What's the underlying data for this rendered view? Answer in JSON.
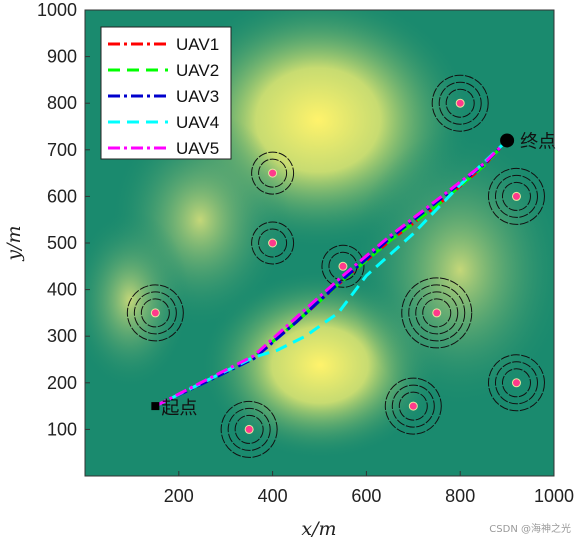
{
  "chart_data": {
    "type": "line",
    "xlabel": "x/m",
    "ylabel": "y/m",
    "xlim": [
      0,
      1000
    ],
    "ylim": [
      0,
      1000
    ],
    "x_ticks": [
      200,
      400,
      600,
      800,
      1000
    ],
    "y_ticks": [
      100,
      200,
      300,
      400,
      500,
      600,
      700,
      800,
      900,
      1000
    ],
    "legend_position": "top-left",
    "start": {
      "label": "起点",
      "x": 150,
      "y": 150
    },
    "end": {
      "label": "终点",
      "x": 900,
      "y": 720
    },
    "series": [
      {
        "name": "UAV1",
        "color": "#ff0000",
        "dash": "dash-dot",
        "x": [
          150,
          250,
          360,
          450,
          550,
          650,
          750,
          850,
          900
        ],
        "y": [
          150,
          200,
          255,
          330,
          420,
          505,
          580,
          665,
          720
        ]
      },
      {
        "name": "UAV2",
        "color": "#00ff00",
        "dash": "dash",
        "x": [
          150,
          250,
          360,
          450,
          550,
          650,
          750,
          850,
          900
        ],
        "y": [
          150,
          200,
          255,
          330,
          420,
          505,
          580,
          665,
          720
        ]
      },
      {
        "name": "UAV3",
        "color": "#0000cd",
        "dash": "dash-dot",
        "x": [
          150,
          250,
          360,
          450,
          550,
          650,
          750,
          850,
          900
        ],
        "y": [
          150,
          198,
          252,
          330,
          422,
          510,
          588,
          668,
          720
        ]
      },
      {
        "name": "UAV4",
        "color": "#00ffff",
        "dash": "dash",
        "x": [
          150,
          250,
          360,
          410,
          470,
          540,
          600,
          700,
          800,
          900
        ],
        "y": [
          150,
          200,
          255,
          270,
          300,
          350,
          430,
          520,
          625,
          720
        ]
      },
      {
        "name": "UAV5",
        "color": "#ff00ff",
        "dash": "dash-dot",
        "x": [
          150,
          250,
          360,
          450,
          550,
          650,
          750,
          850,
          900
        ],
        "y": [
          150,
          202,
          258,
          340,
          430,
          515,
          592,
          670,
          720
        ]
      }
    ],
    "obstacles": [
      {
        "x": 400,
        "y": 650,
        "rings": 2
      },
      {
        "x": 400,
        "y": 500,
        "rings": 2
      },
      {
        "x": 550,
        "y": 450,
        "rings": 2
      },
      {
        "x": 800,
        "y": 800,
        "rings": 3
      },
      {
        "x": 920,
        "y": 600,
        "rings": 3
      },
      {
        "x": 150,
        "y": 350,
        "rings": 3
      },
      {
        "x": 750,
        "y": 350,
        "rings": 4
      },
      {
        "x": 920,
        "y": 200,
        "rings": 3
      },
      {
        "x": 700,
        "y": 150,
        "rings": 3
      },
      {
        "x": 350,
        "y": 100,
        "rings": 3
      }
    ],
    "colors": {
      "background_low": "#1a8a6e",
      "background_high": "#fff36b",
      "obstacle_dot": "#ff3a8c"
    }
  },
  "watermark": "CSDN @海神之光"
}
